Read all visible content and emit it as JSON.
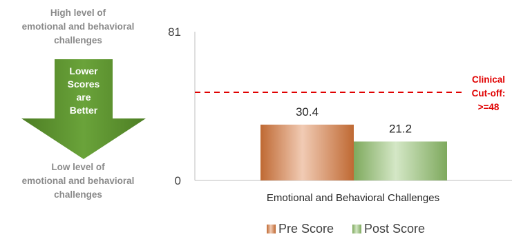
{
  "side_panel": {
    "top_label": "High level of\nemotional and behavioral\nchallenges",
    "arrow_text": "Lower\nScores\nare\nBetter",
    "bottom_label": "Low level of\nemotional and behavioral\nchallenges",
    "arrow_color": "#5a8f2c"
  },
  "chart_data": {
    "type": "bar",
    "categories": [
      "Emotional and Behavioral Challenges"
    ],
    "series": [
      {
        "name": "Pre Score",
        "values": [
          30.4
        ],
        "color": "#d9773a"
      },
      {
        "name": "Post Score",
        "values": [
          21.2
        ],
        "color": "#8fc06a"
      }
    ],
    "data_labels": [
      "30.4",
      "21.2"
    ],
    "y_ticks": [
      "0",
      "81"
    ],
    "ylim": [
      0,
      81
    ],
    "reference_line": {
      "value": 48,
      "label": "Clinical\nCut-off:\n>=48",
      "color": "#e00000",
      "style": "dashed"
    },
    "legend_position": "bottom",
    "grid": false
  }
}
